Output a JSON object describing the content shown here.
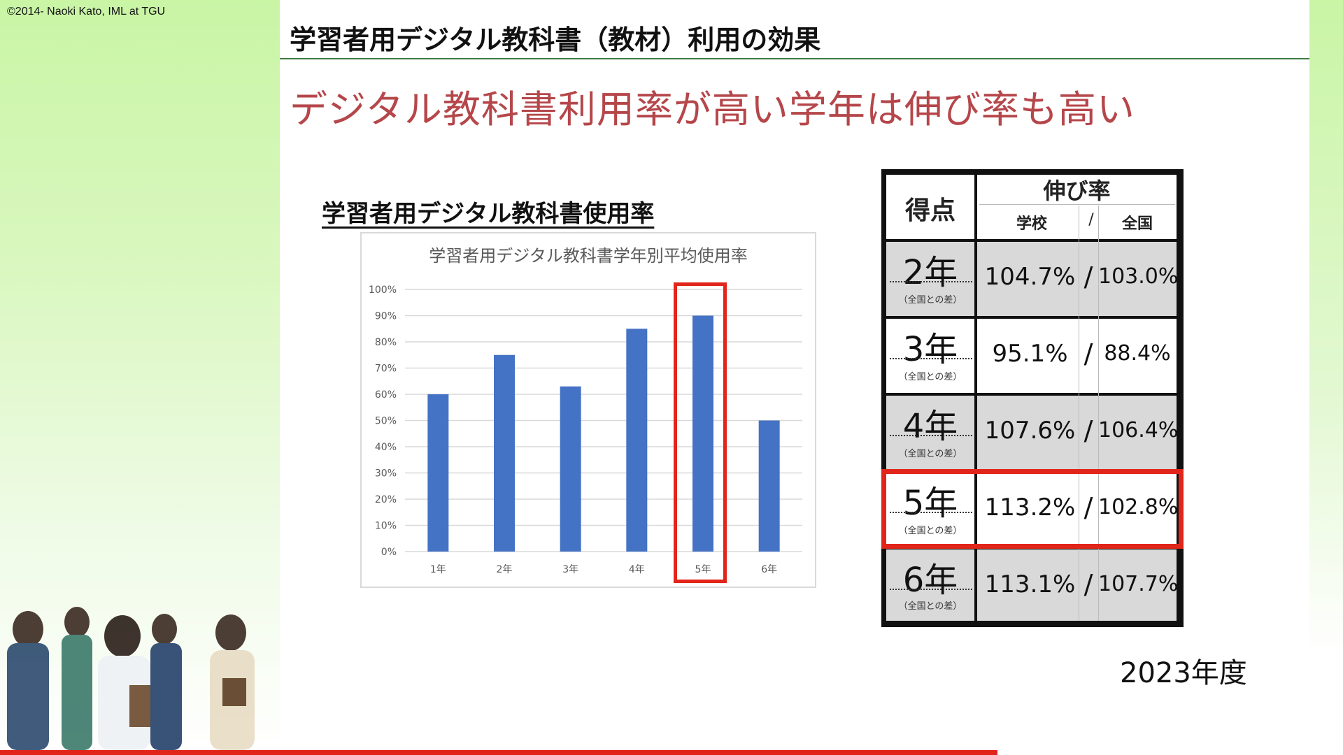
{
  "copyright": "©2014- Naoki Kato, IML at TGU",
  "header_title": "学習者用デジタル教科書（教材）利用の効果",
  "headline": "デジタル教科書利用率が高い学年は伸び率も高い",
  "chart_heading": "学習者用デジタル教科書使用率",
  "chart_data": {
    "type": "bar",
    "title": "学習者用デジタル教科書学年別平均使用率",
    "categories": [
      "1年",
      "2年",
      "3年",
      "4年",
      "5年",
      "6年"
    ],
    "values": [
      60,
      75,
      63,
      85,
      90,
      50
    ],
    "ylim": [
      0,
      100
    ],
    "yticks": [
      "0%",
      "10%",
      "20%",
      "30%",
      "40%",
      "50%",
      "60%",
      "70%",
      "80%",
      "90%",
      "100%"
    ],
    "grid": true,
    "bar_color": "#4472c4",
    "highlight_category": "5年",
    "highlight_color": "#e2251b"
  },
  "table": {
    "header_score": "得点",
    "header_growth": "伸び率",
    "header_school": "学校",
    "header_slash": "/",
    "header_national": "全国",
    "row_note": "（全国との差）",
    "rows": [
      {
        "grade": "2年",
        "school": "104.7%",
        "national": "103.0%"
      },
      {
        "grade": "3年",
        "school": "95.1%",
        "national": "88.4%"
      },
      {
        "grade": "4年",
        "school": "107.6%",
        "national": "106.4%"
      },
      {
        "grade": "5年",
        "school": "113.2%",
        "national": "102.8%"
      },
      {
        "grade": "6年",
        "school": "113.1%",
        "national": "107.7%"
      }
    ],
    "highlight_row": "5年"
  },
  "year_note": "2023年度",
  "colors": {
    "accent_red": "#e2251b",
    "headline_red": "#b5464a",
    "header_green": "#3f7d3f",
    "panel_green": "#c9f5a5"
  }
}
